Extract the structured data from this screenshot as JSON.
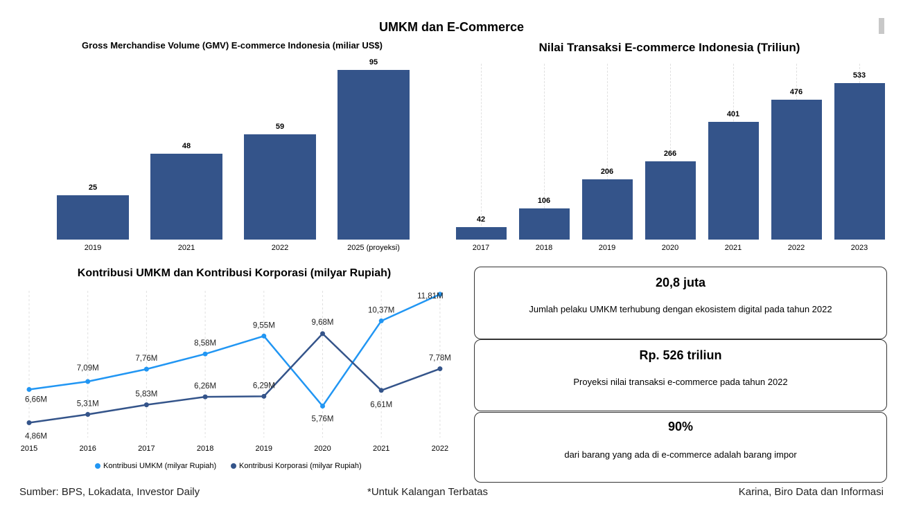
{
  "page": {
    "title": "UMKM dan E-Commerce",
    "footer_source": "Sumber: BPS, Lokadata, Investor Daily",
    "footer_note": "*Untuk Kalangan Terbatas",
    "footer_author": "Karina, Biro Data dan Informasi"
  },
  "colors": {
    "bar": "#34548a",
    "umkm": "#2196f3",
    "korporasi": "#34548a"
  },
  "chart_data": [
    {
      "id": "gmv",
      "type": "bar",
      "title": "Gross Merchandise Volume (GMV) E-commerce Indonesia (miliar US$)",
      "categories": [
        "2019",
        "2021",
        "2022",
        "2025 (proyeksi)"
      ],
      "values": [
        25,
        48,
        59,
        95
      ],
      "ylim": [
        0,
        95
      ]
    },
    {
      "id": "transaksi",
      "type": "bar",
      "title": "Nilai Transaksi E-commerce Indonesia (Triliun)",
      "categories": [
        "2017",
        "2018",
        "2019",
        "2020",
        "2021",
        "2022",
        "2023"
      ],
      "values": [
        42,
        106,
        206,
        266,
        401,
        476,
        533
      ],
      "ylim": [
        0,
        533
      ]
    },
    {
      "id": "kontribusi",
      "type": "line",
      "title": "Kontribusi UMKM dan Kontribusi Korporasi (milyar Rupiah)",
      "x": [
        "2015",
        "2016",
        "2017",
        "2018",
        "2019",
        "2020",
        "2021",
        "2022"
      ],
      "series": [
        {
          "name": "Kontribusi UMKM (milyar Rupiah)",
          "values": [
            6.66,
            7.09,
            7.76,
            8.58,
            9.55,
            5.76,
            10.37,
            11.81
          ],
          "labels": [
            "6,66M",
            "7,09M",
            "7,76M",
            "8,58M",
            "9,55M",
            "5,76M",
            "10,37M",
            "11,81M"
          ]
        },
        {
          "name": "Kontribusi Korporasi (milyar Rupiah)",
          "values": [
            4.86,
            5.31,
            5.83,
            6.26,
            6.29,
            9.68,
            6.61,
            7.78
          ],
          "labels": [
            "4,86M",
            "5,31M",
            "5,83M",
            "6,26M",
            "6,29M",
            "9,68M",
            "6,61M",
            "7,78M"
          ]
        }
      ]
    }
  ],
  "cards": [
    {
      "value": "20,8 juta",
      "desc": "Jumlah pelaku UMKM terhubung dengan ekosistem digital pada tahun 2022"
    },
    {
      "value": "Rp. 526 triliun",
      "desc": "Proyeksi nilai transaksi e-commerce pada tahun 2022"
    },
    {
      "value": "90%",
      "desc": "dari barang yang ada di e-commerce adalah barang impor"
    }
  ]
}
